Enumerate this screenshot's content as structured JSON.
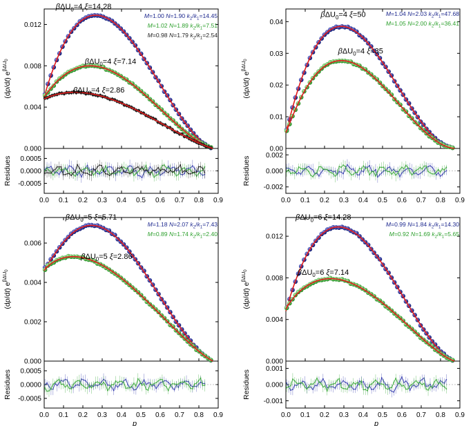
{
  "colors": {
    "blue": "#1f2a8f",
    "green": "#2ea02e",
    "black": "#222222",
    "red": "#e01b1b",
    "blue_resid": "#3a40b0",
    "green_resid": "#3daa3d"
  },
  "chart_data": [
    {
      "type": "scatter",
      "ylabel": "(dp/dt) e^(βΔU0)",
      "ylim": [
        0,
        0.0135
      ],
      "yticks": [
        "0.000",
        "0.004",
        "0.008",
        "0.012"
      ],
      "xlim": [
        0,
        0.9
      ],
      "xlabel": "",
      "residuals": {
        "ylabel": "Residues",
        "ylim": [
          -0.0009,
          0.0009
        ],
        "yticks": [
          "0.0005",
          "0.0000",
          "-0.0005"
        ]
      },
      "params_text": [
        {
          "text": "M=1.00 N=1.90 k2/k1=14.45",
          "color": "blue"
        },
        {
          "text": "M=1.02 N=1.89 k2/k1=7.51",
          "color": "green"
        },
        {
          "text": "M=0.98 N=1.79 k2/k1=2.54",
          "color": "black"
        }
      ],
      "series": [
        {
          "name": "βΔU0=4 ξ=14.28",
          "color": "blue",
          "fit": {
            "a": 0.005,
            "M": 1.0,
            "N": 1.9,
            "peak": 0.0128
          }
        },
        {
          "name": "βΔU0=4 ξ=7.14",
          "color": "green",
          "fit": {
            "a": 0.005,
            "M": 1.02,
            "N": 1.89,
            "peak": 0.0078
          }
        },
        {
          "name": "βΔU0=4 ξ=2.86",
          "color": "black",
          "fit": {
            "a": 0.0048,
            "M": 0.98,
            "N": 1.79,
            "peak": 0.005
          }
        }
      ],
      "annotations": [
        {
          "series": 0,
          "text": "βΔU0=4 ξ=14.28",
          "at": [
            0.06,
            0.0135
          ]
        },
        {
          "series": 1,
          "text": "βΔU0=4 ξ=7.14",
          "at": [
            0.21,
            0.0082
          ]
        },
        {
          "series": 2,
          "text": "βΔU0=4 ξ=2.86",
          "at": [
            0.15,
            0.0054
          ]
        }
      ]
    },
    {
      "type": "scatter",
      "ylabel": "(dp/dt) e^(βΔU0)",
      "ylim": [
        0,
        0.044
      ],
      "yticks": [
        "0.00",
        "0.01",
        "0.02",
        "0.03",
        "0.04"
      ],
      "xlim": [
        0,
        0.9
      ],
      "xlabel": "",
      "residuals": {
        "ylabel": "Residues",
        "ylim": [
          -0.0028,
          0.0028
        ],
        "yticks": [
          "0.002",
          "0.000",
          "-0.002"
        ]
      },
      "params_text": [
        {
          "text": "M=1.04 N=2.03 k2/k1=47.68",
          "color": "blue"
        },
        {
          "text": "M=1.05 N=2.00 k2/k1=36.41",
          "color": "green"
        }
      ],
      "series": [
        {
          "name": "βΔU0=4 ξ=50",
          "color": "blue",
          "fit": {
            "a": 0.005,
            "M": 1.04,
            "N": 2.03,
            "peak": 0.0385
          }
        },
        {
          "name": "βΔU0=4 ξ=35",
          "color": "green",
          "fit": {
            "a": 0.005,
            "M": 1.05,
            "N": 2.0,
            "peak": 0.0277
          }
        }
      ],
      "annotations": [
        {
          "series": 0,
          "text": "βΔU0=4 ξ=50",
          "at": [
            0.18,
            0.0415
          ]
        },
        {
          "series": 1,
          "text": "βΔU0=4 ξ=35",
          "at": [
            0.27,
            0.03
          ]
        }
      ]
    },
    {
      "type": "scatter",
      "ylabel": "(dp/dt) e^(βΔU0)",
      "ylim": [
        0,
        0.0073
      ],
      "yticks": [
        "0.000",
        "0.002",
        "0.004",
        "0.006"
      ],
      "xlim": [
        0,
        0.9
      ],
      "xlabel": "p",
      "residuals": {
        "ylabel": "Residues",
        "ylim": [
          -0.00085,
          0.00085
        ],
        "yticks": [
          "0.0005",
          "0.0000",
          "-0.0005"
        ]
      },
      "params_text": [
        {
          "text": "M=1.18 N=2.07 k2/k1=7.43",
          "color": "blue"
        },
        {
          "text": "M=0.89 N=1.74 k2/k1=2.40",
          "color": "green"
        }
      ],
      "series": [
        {
          "name": "βΔU0=5 ξ=5.71",
          "color": "blue",
          "fit": {
            "a": 0.0047,
            "M": 1.18,
            "N": 2.07,
            "peak": 0.0067
          }
        },
        {
          "name": "βΔU0=5 ξ=2.86",
          "color": "green",
          "fit": {
            "a": 0.0046,
            "M": 0.89,
            "N": 1.74,
            "peak": 0.0049
          }
        }
      ],
      "annotations": [
        {
          "series": 0,
          "text": "βΔU0=5 ξ=5.71",
          "at": [
            0.11,
            0.0072
          ]
        },
        {
          "series": 1,
          "text": "βΔU0=5 ξ=2.86",
          "at": [
            0.19,
            0.0052
          ]
        }
      ]
    },
    {
      "type": "scatter",
      "ylabel": "(dp/dt) e^(βΔU0)",
      "ylim": [
        0,
        0.0138
      ],
      "yticks": [
        "0.000",
        "0.004",
        "0.008",
        "0.012"
      ],
      "xlim": [
        0,
        0.9
      ],
      "xlabel": "p",
      "residuals": {
        "ylabel": "Residues",
        "ylim": [
          -0.00145,
          0.00145
        ],
        "yticks": [
          "0.001",
          "0.000",
          "-0.001"
        ]
      },
      "params_text": [
        {
          "text": "M=0.99 N=1.84 k2/k1=14.30",
          "color": "blue"
        },
        {
          "text": "M=0.92 N=1.69 k2/k1=5.65",
          "color": "green"
        }
      ],
      "series": [
        {
          "name": "βΔU0=6 ξ=14.28",
          "color": "blue",
          "fit": {
            "a": 0.0048,
            "M": 0.99,
            "N": 1.84,
            "peak": 0.0128
          }
        },
        {
          "name": "βΔU0=6 ξ=7.14",
          "color": "green",
          "fit": {
            "a": 0.005,
            "M": 0.92,
            "N": 1.69,
            "peak": 0.0077
          }
        }
      ],
      "annotations": [
        {
          "series": 0,
          "text": "βΔU0=6 ξ=14.28",
          "at": [
            0.05,
            0.0136
          ]
        },
        {
          "series": 1,
          "text": "βΔU0=6 ξ=7.14",
          "at": [
            0.06,
            0.0083
          ]
        }
      ]
    }
  ],
  "xticks": [
    "0.0",
    "0.1",
    "0.2",
    "0.3",
    "0.4",
    "0.5",
    "0.6",
    "0.7",
    "0.8",
    "0.9"
  ]
}
